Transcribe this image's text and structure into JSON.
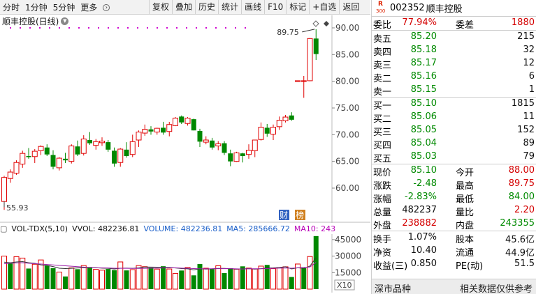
{
  "toolbar": {
    "periods": [
      "分时",
      "1分钟",
      "5分钟",
      "更多"
    ],
    "buttons": [
      "复权",
      "叠加",
      "历史",
      "统计",
      "画线",
      "F10",
      "标记",
      "+自选",
      "返回"
    ]
  },
  "chart": {
    "title": "顺丰控股(日线)",
    "high_label": "89.75",
    "low_label": "55.93",
    "badge_cai": "财",
    "badge_bang": "榜"
  },
  "volume": {
    "indicator": "VOL-TDX(5,10)",
    "vvol": "VVOL: 482236.81",
    "volume": "VOLUME: 482236.81",
    "ma5": "MA5: 285666.72",
    "ma10": "MA10: 243",
    "unit": "X10"
  },
  "chart_data": [
    {
      "type": "candlestick",
      "title": "顺丰控股(日线)",
      "ylim": [
        57,
        91
      ],
      "y_ticks": [
        "90.00",
        "85.00",
        "80.00",
        "75.00",
        "70.00",
        "65.00",
        "60.00"
      ],
      "candles": [
        [
          57.5,
          62.3,
          55.93,
          62.0
        ],
        [
          61.8,
          63.5,
          61.0,
          63.0
        ],
        [
          62.8,
          65.2,
          62.5,
          64.8
        ],
        [
          64.5,
          67.0,
          63.8,
          66.5
        ],
        [
          66.0,
          67.5,
          65.5,
          65.8
        ],
        [
          65.9,
          67.3,
          64.7,
          66.9
        ],
        [
          67.0,
          68.0,
          66.2,
          67.8
        ],
        [
          67.6,
          68.2,
          66.0,
          66.3
        ],
        [
          66.2,
          67.1,
          63.5,
          64.0
        ],
        [
          63.8,
          65.8,
          63.3,
          65.6
        ],
        [
          65.5,
          66.6,
          64.7,
          65.2
        ],
        [
          65.0,
          68.2,
          64.6,
          67.9
        ],
        [
          67.8,
          68.9,
          66.0,
          66.3
        ],
        [
          66.5,
          69.9,
          66.1,
          69.2
        ],
        [
          69.0,
          70.5,
          68.1,
          68.4
        ],
        [
          68.0,
          69.2,
          67.2,
          68.7
        ],
        [
          68.5,
          69.5,
          67.9,
          68.8
        ],
        [
          68.6,
          69.0,
          66.8,
          67.2
        ],
        [
          67.0,
          67.6,
          64.0,
          64.6
        ],
        [
          64.8,
          67.5,
          64.0,
          67.3
        ],
        [
          67.2,
          68.6,
          65.7,
          66.0
        ],
        [
          66.3,
          70.0,
          65.8,
          68.7
        ],
        [
          69.0,
          70.8,
          67.7,
          70.5
        ],
        [
          70.3,
          71.9,
          69.8,
          71.0
        ],
        [
          71.0,
          71.6,
          70.0,
          70.6
        ],
        [
          70.5,
          71.3,
          70.0,
          71.2
        ],
        [
          71.3,
          72.4,
          70.0,
          70.4
        ],
        [
          70.6,
          72.4,
          69.7,
          71.9
        ],
        [
          71.7,
          73.3,
          71.6,
          73.1
        ],
        [
          73.4,
          73.6,
          72.0,
          72.3
        ],
        [
          72.1,
          73.3,
          71.7,
          73.1
        ],
        [
          72.9,
          73.0,
          70.8,
          70.8
        ],
        [
          70.7,
          71.1,
          67.7,
          68.7
        ],
        [
          68.6,
          69.7,
          68.2,
          69.0
        ],
        [
          68.9,
          69.4,
          67.2,
          67.6
        ],
        [
          67.9,
          68.8,
          67.1,
          68.3
        ],
        [
          68.4,
          68.8,
          66.2,
          66.6
        ],
        [
          66.5,
          67.2,
          64.1,
          65.0
        ],
        [
          65.0,
          66.8,
          64.9,
          66.6
        ],
        [
          66.5,
          66.6,
          64.8,
          66.0
        ],
        [
          66.3,
          68.2,
          65.5,
          67.1
        ],
        [
          67.0,
          69.0,
          65.8,
          69.0
        ],
        [
          69.1,
          72.3,
          68.9,
          71.4
        ],
        [
          71.3,
          72.0,
          69.6,
          70.2
        ],
        [
          70.1,
          71.9,
          69.0,
          71.4
        ],
        [
          71.5,
          73.4,
          70.9,
          72.7
        ],
        [
          72.6,
          73.7,
          72.3,
          73.3
        ],
        [
          73.6,
          74.2,
          72.6,
          72.8
        ],
        [
          80.1,
          80.1,
          80.1,
          80.1
        ],
        [
          80.0,
          81.0,
          76.9,
          80.1
        ],
        [
          80.1,
          88.1,
          80.0,
          88.0
        ],
        [
          88.0,
          89.75,
          84.0,
          85.1
        ]
      ],
      "volume_ticks": [
        "45000",
        "30000",
        "15000"
      ],
      "volume_ylim": [
        0,
        50000
      ],
      "volumes": [
        [
          30000,
          "up"
        ],
        [
          23500,
          "down"
        ],
        [
          29500,
          "up"
        ],
        [
          28200,
          "up"
        ],
        [
          18700,
          "down"
        ],
        [
          22600,
          "up"
        ],
        [
          26500,
          "up"
        ],
        [
          21400,
          "down"
        ],
        [
          19000,
          "down"
        ],
        [
          15500,
          "up"
        ],
        [
          11500,
          "down"
        ],
        [
          19300,
          "up"
        ],
        [
          18100,
          "down"
        ],
        [
          21400,
          "up"
        ],
        [
          20100,
          "down"
        ],
        [
          18000,
          "up"
        ],
        [
          17200,
          "up"
        ],
        [
          18300,
          "down"
        ],
        [
          17200,
          "down"
        ],
        [
          24700,
          "up"
        ],
        [
          17000,
          "down"
        ],
        [
          17700,
          "up"
        ],
        [
          21400,
          "up"
        ],
        [
          20400,
          "up"
        ],
        [
          19500,
          "down"
        ],
        [
          18200,
          "up"
        ],
        [
          20800,
          "down"
        ],
        [
          18300,
          "up"
        ],
        [
          14300,
          "up"
        ],
        [
          16900,
          "down"
        ],
        [
          19700,
          "up"
        ],
        [
          12500,
          "down"
        ],
        [
          22800,
          "down"
        ],
        [
          19000,
          "up"
        ],
        [
          18200,
          "down"
        ],
        [
          21200,
          "up"
        ],
        [
          14600,
          "down"
        ],
        [
          19000,
          "down"
        ],
        [
          18100,
          "up"
        ],
        [
          20700,
          "down"
        ],
        [
          19100,
          "up"
        ],
        [
          18300,
          "up"
        ],
        [
          20900,
          "up"
        ],
        [
          22000,
          "down"
        ],
        [
          18600,
          "up"
        ],
        [
          19500,
          "up"
        ],
        [
          20300,
          "up"
        ],
        [
          11000,
          "down"
        ],
        [
          22800,
          "up"
        ],
        [
          19000,
          "down"
        ],
        [
          29600,
          "up"
        ],
        [
          48200,
          "down"
        ]
      ],
      "ma5": [
        24500,
        24000,
        24700,
        25000,
        24000,
        23500,
        22000,
        21500,
        20500,
        19000,
        18700,
        18900,
        19200,
        19400,
        19600,
        19500,
        19100,
        18900,
        18300,
        19000,
        19100,
        18900,
        19300,
        20100,
        20000,
        19900,
        19600,
        19700,
        19200,
        18700,
        18400,
        17500,
        18500,
        18200,
        18400,
        18800,
        18800,
        18500,
        18200,
        18400,
        18600,
        18200,
        18600,
        19200,
        19300,
        19600,
        20300,
        18400,
        19400,
        18900,
        20900,
        28567
      ],
      "ma10": [
        23000,
        23500,
        23800,
        24000,
        23500,
        23200,
        22800,
        22400,
        22000,
        21500,
        21200,
        20800,
        20400,
        20000,
        19600,
        19400,
        19300,
        19200,
        19000,
        18900,
        18900,
        18800,
        18800,
        18900,
        19100,
        19100,
        19200,
        19300,
        19400,
        19100,
        18900,
        18700,
        18500,
        18400,
        18500,
        18600,
        18700,
        18600,
        18400,
        18300,
        18500,
        18500,
        18500,
        18700,
        18900,
        19100,
        19200,
        19000,
        19400,
        19600,
        20100,
        24300
      ]
    }
  ],
  "quote": {
    "code": "002352",
    "name": "顺丰控股",
    "logo_r": "R",
    "logo_n": "300",
    "weibi_label": "委比",
    "weibi": "77.94%",
    "weicha_label": "委差",
    "weicha": "1880",
    "asks": [
      {
        "label": "卖五",
        "price": "85.20",
        "vol": "215"
      },
      {
        "label": "卖四",
        "price": "85.18",
        "vol": "32"
      },
      {
        "label": "卖三",
        "price": "85.17",
        "vol": "12"
      },
      {
        "label": "卖二",
        "price": "85.16",
        "vol": "6"
      },
      {
        "label": "卖一",
        "price": "85.15",
        "vol": "1"
      }
    ],
    "bids": [
      {
        "label": "买一",
        "price": "85.10",
        "vol": "1815"
      },
      {
        "label": "买二",
        "price": "85.06",
        "vol": "11"
      },
      {
        "label": "买三",
        "price": "85.05",
        "vol": "152"
      },
      {
        "label": "买四",
        "price": "85.04",
        "vol": "89"
      },
      {
        "label": "买五",
        "price": "85.03",
        "vol": "79"
      }
    ],
    "stats": [
      {
        "l1": "现价",
        "v1": "85.10",
        "c1": "green",
        "l2": "今开",
        "v2": "88.00",
        "c2": "red"
      },
      {
        "l1": "涨跌",
        "v1": "-2.48",
        "c1": "green",
        "l2": "最高",
        "v2": "89.75",
        "c2": "red"
      },
      {
        "l1": "涨幅",
        "v1": "-2.83%",
        "c1": "green",
        "l2": "最低",
        "v2": "84.00",
        "c2": "green"
      },
      {
        "l1": "总量",
        "v1": "482237",
        "c1": "black",
        "l2": "量比",
        "v2": "2.20",
        "c2": "red"
      },
      {
        "l1": "外盘",
        "v1": "238882",
        "c1": "red",
        "l2": "内盘",
        "v2": "243355",
        "c2": "green"
      }
    ],
    "fund": [
      {
        "l1": "换手",
        "v1": "1.07%",
        "l2": "股本",
        "v2": "45.6亿"
      },
      {
        "l1": "净资",
        "v1": "10.40",
        "l2": "流通",
        "v2": "44.9亿"
      },
      {
        "l1": "收益(三)",
        "v1": "0.850",
        "l2": "PE(动)",
        "v2": "51.5"
      }
    ],
    "footer_left": "深市品种",
    "footer_right": "相关数据仅供参考"
  },
  "colors": {
    "up": "#e00000",
    "down": "#008800",
    "ma5": "#333333",
    "ma10": "#9b1fa8"
  }
}
